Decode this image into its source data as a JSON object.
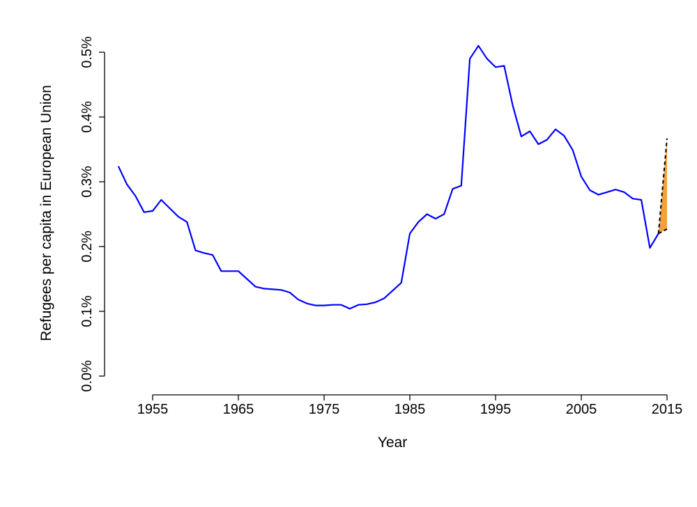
{
  "chart_data": {
    "type": "line",
    "xlabel": "Year",
    "ylabel": "Refugees per capita in European Union",
    "xlim": [
      1950,
      2015.5
    ],
    "ylim": [
      0,
      0.5
    ],
    "x_ticks": [
      1955,
      1965,
      1975,
      1985,
      1995,
      2005,
      2015
    ],
    "x_tick_labels": [
      "1955",
      "1965",
      "1975",
      "1985",
      "1995",
      "2005",
      "2015"
    ],
    "y_ticks": [
      0,
      0.1,
      0.2,
      0.3,
      0.4,
      0.5
    ],
    "y_tick_labels": [
      "0.0%",
      "0.1%",
      "0.2%",
      "0.3%",
      "0.4%",
      "0.5%"
    ],
    "grid": false,
    "series": [
      {
        "color": "#0000ff",
        "x": [
          1951,
          1952,
          1953,
          1954,
          1955,
          1956,
          1957,
          1958,
          1959,
          1960,
          1961,
          1962,
          1963,
          1964,
          1965,
          1966,
          1967,
          1968,
          1969,
          1970,
          1971,
          1972,
          1973,
          1974,
          1975,
          1976,
          1977,
          1978,
          1979,
          1980,
          1981,
          1982,
          1983,
          1984,
          1985,
          1986,
          1987,
          1988,
          1989,
          1990,
          1991,
          1992,
          1993,
          1994,
          1995,
          1996,
          1997,
          1998,
          1999,
          2000,
          2001,
          2002,
          2003,
          2004,
          2005,
          2006,
          2007,
          2008,
          2009,
          2010,
          2011,
          2012,
          2013,
          2014
        ],
        "y": [
          0.324,
          0.296,
          0.278,
          0.253,
          0.255,
          0.272,
          0.259,
          0.246,
          0.238,
          0.194,
          0.19,
          0.187,
          0.162,
          0.162,
          0.162,
          0.15,
          0.138,
          0.135,
          0.134,
          0.133,
          0.129,
          0.118,
          0.112,
          0.109,
          0.109,
          0.11,
          0.11,
          0.104,
          0.11,
          0.111,
          0.114,
          0.12,
          0.132,
          0.144,
          0.22,
          0.238,
          0.25,
          0.243,
          0.25,
          0.289,
          0.294,
          0.49,
          0.51,
          0.49,
          0.477,
          0.479,
          0.418,
          0.37,
          0.378,
          0.358,
          0.365,
          0.381,
          0.371,
          0.349,
          0.308,
          0.287,
          0.28,
          0.284,
          0.288,
          0.284,
          0.274,
          0.272,
          0.198,
          0.22
        ]
      }
    ],
    "projection": {
      "fill_color": "#f4a040",
      "line_color": "#000000",
      "start": {
        "x": 2014,
        "y": 0.22
      },
      "upper": {
        "x": 2015,
        "y": 0.367
      },
      "lower": {
        "x": 2015,
        "y": 0.227
      }
    }
  }
}
